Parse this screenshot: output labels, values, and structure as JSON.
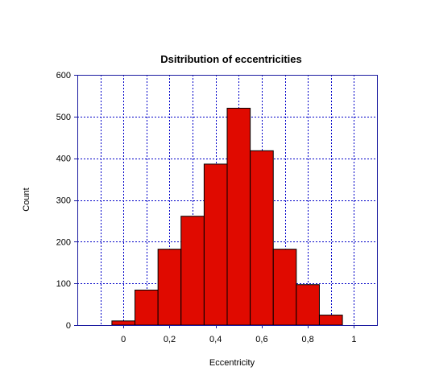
{
  "chart_data": {
    "type": "bar",
    "title": "Dsitribution of eccentricities",
    "xlabel": "Eccentricity",
    "ylabel": "Count",
    "x_ticks": [
      "0",
      "0,2",
      "0,4",
      "0,6",
      "0,8",
      "1"
    ],
    "x_tick_values": [
      0,
      0.2,
      0.4,
      0.6,
      0.8,
      1.0
    ],
    "y_ticks": [
      "0",
      "100",
      "200",
      "300",
      "400",
      "500",
      "600"
    ],
    "y_tick_values": [
      0,
      100,
      200,
      300,
      400,
      500,
      600
    ],
    "xlim": [
      -0.2,
      1.1
    ],
    "ylim": [
      0,
      600
    ],
    "bin_width": 0.1,
    "bins": [
      {
        "x": 0.0,
        "value": 10
      },
      {
        "x": 0.1,
        "value": 84
      },
      {
        "x": 0.2,
        "value": 182
      },
      {
        "x": 0.3,
        "value": 261
      },
      {
        "x": 0.4,
        "value": 386
      },
      {
        "x": 0.5,
        "value": 520
      },
      {
        "x": 0.6,
        "value": 418
      },
      {
        "x": 0.7,
        "value": 182
      },
      {
        "x": 0.8,
        "value": 97
      },
      {
        "x": 0.9,
        "value": 24
      }
    ],
    "grid": true,
    "colors": {
      "bar_fill": "#e00a00",
      "bar_stroke": "#000000",
      "axis": "#1a1aa0",
      "grid": "#0000c8",
      "background": "#ffffff"
    }
  }
}
